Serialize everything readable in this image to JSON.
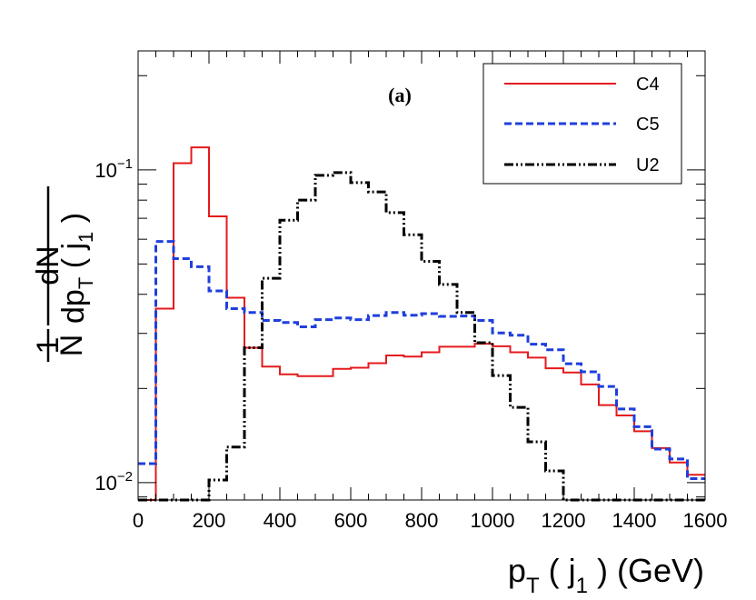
{
  "chart_data": {
    "type": "line",
    "style": "step-histogram",
    "annotation": "(a)",
    "x": [
      0,
      50,
      100,
      150,
      200,
      250,
      300,
      350,
      400,
      450,
      500,
      550,
      600,
      650,
      700,
      750,
      800,
      850,
      900,
      950,
      1000,
      1050,
      1100,
      1150,
      1200,
      1250,
      1300,
      1350,
      1400,
      1450,
      1500,
      1550
    ],
    "bin_width": 50,
    "xlim": [
      0,
      1600
    ],
    "ylim": [
      0.0088,
      0.24
    ],
    "yscale": "log",
    "x_ticks": [
      "0",
      "200",
      "400",
      "600",
      "800",
      "1000",
      "1200",
      "1400",
      "1600"
    ],
    "x_tick_values": [
      0,
      200,
      400,
      600,
      800,
      1000,
      1200,
      1400,
      1600
    ],
    "y_ticks": [
      {
        "value": 0.1,
        "base": "10",
        "exp": "−1"
      },
      {
        "value": 0.01,
        "base": "10",
        "exp": "−2"
      }
    ],
    "xlabel": {
      "main": "p",
      "sub1": "T",
      "mid": " ( j",
      "sub2": "1",
      "end": " ) (GeV)"
    },
    "ylabel": {
      "one": "1",
      "n": "N",
      "dN": "dN",
      "dp": "dp",
      "T": "T",
      "jpre": " ( j",
      "j1": "1",
      "jpost": " )"
    },
    "series": [
      {
        "name": "C4",
        "color": "#e41a1c",
        "dash": "solid",
        "values": [
          0.0086,
          0.036,
          0.105,
          0.118,
          0.071,
          0.039,
          0.027,
          0.0235,
          0.0222,
          0.0219,
          0.0219,
          0.0231,
          0.0233,
          0.0241,
          0.0255,
          0.0253,
          0.0261,
          0.0272,
          0.0272,
          0.0278,
          0.0273,
          0.0261,
          0.0251,
          0.0232,
          0.0225,
          0.0206,
          0.0177,
          0.0164,
          0.0146,
          0.0129,
          0.0116,
          0.0106
        ]
      },
      {
        "name": "C5",
        "color": "#1f3fdc",
        "dash": "dashed",
        "values": [
          0.0115,
          0.059,
          0.052,
          0.049,
          0.041,
          0.036,
          0.035,
          0.033,
          0.0325,
          0.0315,
          0.0332,
          0.0336,
          0.0332,
          0.0342,
          0.035,
          0.0343,
          0.0347,
          0.034,
          0.0341,
          0.033,
          0.0301,
          0.0296,
          0.0277,
          0.0266,
          0.024,
          0.0226,
          0.0203,
          0.0172,
          0.0151,
          0.0128,
          0.0119,
          0.0103
        ]
      },
      {
        "name": "U2",
        "color": "#000000",
        "dash": "dashdot",
        "values": [
          0.0086,
          0.0086,
          0.0086,
          0.0086,
          0.0102,
          0.013,
          0.027,
          0.045,
          0.069,
          0.08,
          0.096,
          0.098,
          0.091,
          0.085,
          0.073,
          0.062,
          0.051,
          0.043,
          0.035,
          0.028,
          0.022,
          0.0174,
          0.0135,
          0.0109,
          0.0086,
          0.0086,
          0.0086,
          0.0086,
          0.0086,
          0.0086,
          0.0086,
          0.0086
        ]
      }
    ],
    "legend_position": "top-right"
  }
}
